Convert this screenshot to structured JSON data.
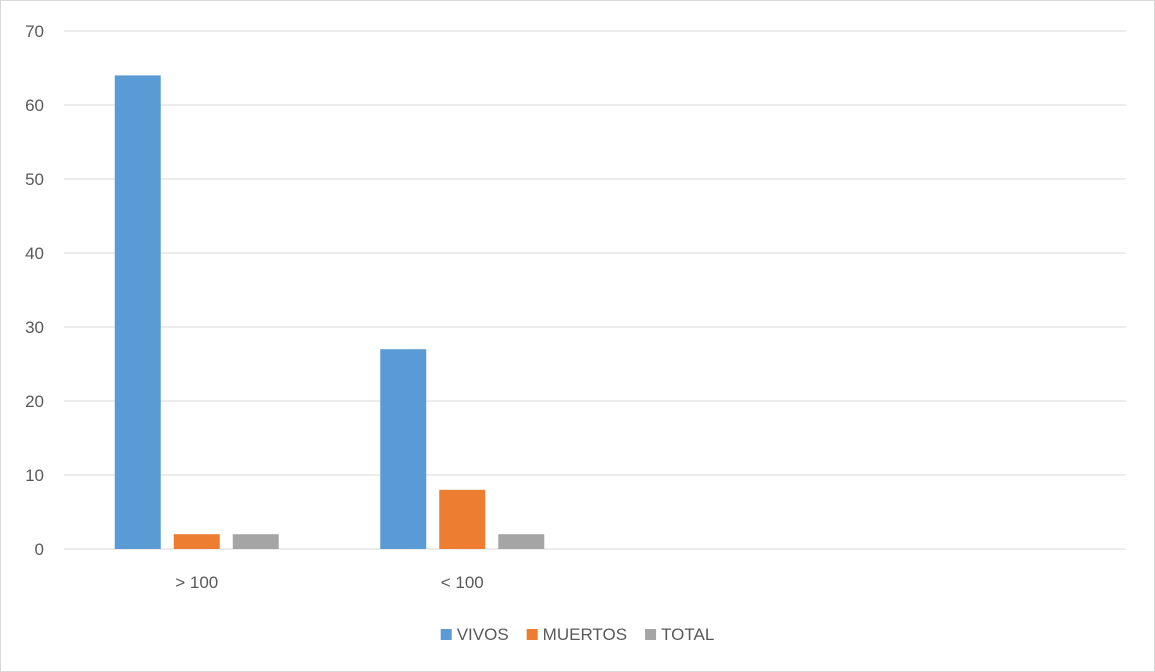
{
  "chart_data": {
    "type": "bar",
    "categories": [
      "> 100",
      "< 100",
      "",
      ""
    ],
    "series": [
      {
        "name": "VIVOS",
        "values": [
          64,
          27,
          null,
          null
        ],
        "color": "#5b9bd5"
      },
      {
        "name": "MUERTOS",
        "values": [
          2,
          8,
          null,
          null
        ],
        "color": "#ed7d31"
      },
      {
        "name": "TOTAL",
        "values": [
          2,
          2,
          null,
          null
        ],
        "color": "#a5a5a5"
      }
    ],
    "ylim": [
      0,
      70
    ],
    "yticks": [
      0,
      10,
      20,
      30,
      40,
      50,
      60,
      70
    ],
    "grid": true,
    "legend_position": "bottom",
    "gridline_color": "#d9d9d9"
  }
}
